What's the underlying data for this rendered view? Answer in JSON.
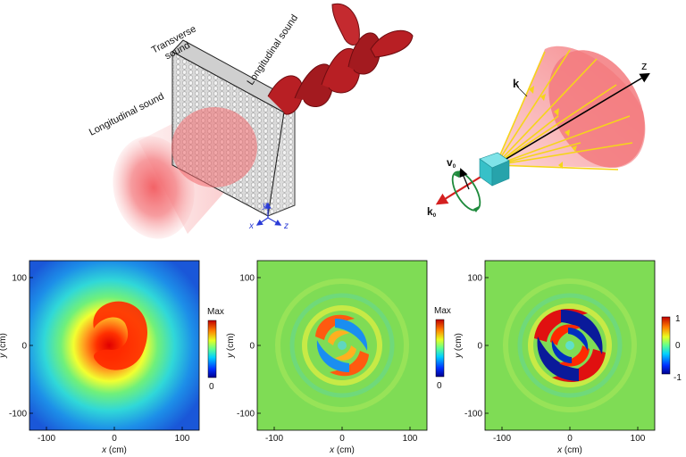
{
  "labels": {
    "transverse_line1": "Transverse",
    "transverse_line2": "sound",
    "longitudinal_left": "Longitudinal sound",
    "longitudinal_right": "Longitudinal sound",
    "axis_y": "y",
    "axis_x": "x",
    "axis_z": "z"
  },
  "cone_diagram": {
    "z_label": "z",
    "k_label": "k",
    "v0_label": "v",
    "v0_sub": "0",
    "k0_label": "k",
    "k0_sub": "0"
  },
  "panels": [
    {
      "y_axis_label": "y (cm)",
      "x_axis_label": "x (cm)",
      "x_ticks": [
        "-100",
        "0",
        "100"
      ],
      "y_ticks": [
        "100",
        "0",
        "-100"
      ],
      "colorbar_top": "Max",
      "colorbar_bottom": "0",
      "colorbar_mid": ""
    },
    {
      "y_axis_label": "y (cm)",
      "x_axis_label": "x (cm)",
      "x_ticks": [
        "-100",
        "0",
        "100"
      ],
      "y_ticks": [
        "100",
        "0",
        "-100"
      ],
      "colorbar_top": "Max",
      "colorbar_bottom": "0",
      "colorbar_mid": ""
    },
    {
      "y_axis_label": "y (cm)",
      "x_axis_label": "x (cm)",
      "x_ticks": [
        "-100",
        "0",
        "100"
      ],
      "y_ticks": [
        "100",
        "0",
        "-100"
      ],
      "colorbar_top": "1",
      "colorbar_bottom": "-1",
      "colorbar_mid": "0"
    }
  ],
  "colors": {
    "wave_red": "#b81f24",
    "wave_dark": "#7a1014",
    "beam_pink": "#f26e72",
    "cone_fill": "#f7878a",
    "ray_yellow": "#f5d51a",
    "axis_blue": "#2a3bd6",
    "arrow_red": "#d42020",
    "loop_green": "#1e8a3c",
    "cube_cyan": "#37c0c8",
    "field_green": "#7fdc55"
  }
}
